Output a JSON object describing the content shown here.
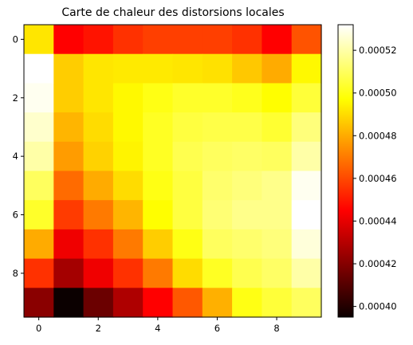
{
  "chart_data": {
    "type": "heatmap",
    "title": "Carte de chaleur des distorsions locales",
    "xlabel": "",
    "ylabel": "",
    "colormap": "hot",
    "x_ticks": [
      "0",
      "2",
      "4",
      "6",
      "8"
    ],
    "y_ticks": [
      "0",
      "2",
      "4",
      "6",
      "8"
    ],
    "colorbar": {
      "range": [
        0.000395,
        0.000532
      ],
      "ticks": [
        "0.00040",
        "0.00042",
        "0.00044",
        "0.00046",
        "0.00048",
        "0.00050",
        "0.00052"
      ]
    },
    "values": [
      [
        0.000492,
        0.000443,
        0.000449,
        0.000455,
        0.000458,
        0.000458,
        0.000458,
        0.000455,
        0.000443,
        0.000462
      ],
      [
        0.000532,
        0.000487,
        0.000492,
        0.000493,
        0.000493,
        0.000492,
        0.000491,
        0.000486,
        0.00048,
        0.000496
      ],
      [
        0.00053,
        0.000487,
        0.000492,
        0.000496,
        0.0005,
        0.000503,
        0.000503,
        0.000501,
        0.000497,
        0.000505
      ],
      [
        0.000525,
        0.000482,
        0.00049,
        0.000496,
        0.000502,
        0.000506,
        0.000507,
        0.000507,
        0.000504,
        0.000514
      ],
      [
        0.00052,
        0.000477,
        0.000488,
        0.000495,
        0.000502,
        0.000508,
        0.00051,
        0.000511,
        0.00051,
        0.00052
      ],
      [
        0.00051,
        0.000467,
        0.00048,
        0.00049,
        0.0005,
        0.000506,
        0.000512,
        0.000514,
        0.000516,
        0.00053
      ],
      [
        0.000503,
        0.000457,
        0.00047,
        0.000482,
        0.000497,
        0.000506,
        0.000513,
        0.000516,
        0.000516,
        0.000532
      ],
      [
        0.00048,
        0.00044,
        0.000455,
        0.00047,
        0.000487,
        0.0005,
        0.00051,
        0.000512,
        0.000514,
        0.000527
      ],
      [
        0.000455,
        0.000425,
        0.00044,
        0.000455,
        0.00047,
        0.00049,
        0.000502,
        0.000508,
        0.000511,
        0.00052
      ],
      [
        0.00042,
        0.000395,
        0.000414,
        0.000427,
        0.000445,
        0.000463,
        0.000481,
        0.0005,
        0.000505,
        0.00051
      ]
    ]
  }
}
